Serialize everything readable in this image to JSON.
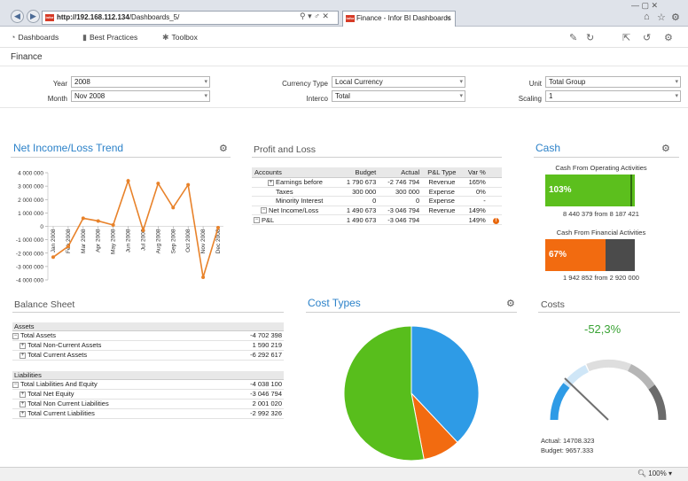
{
  "browser": {
    "url_host": "http://192.168.112.134",
    "url_path": "/Dashboards_5/",
    "tab_title": "Finance - Infor BI Dashboards",
    "favicon_text": "infor",
    "addr_controls": "⚲ ▾ ♂ ✕",
    "window_controls": "—  ▢  ✕",
    "toolbar_icons": [
      "home-icon",
      "star-icon",
      "gear-icon"
    ]
  },
  "menu": {
    "dashboards": "Dashboards",
    "best_practices": "Best Practices",
    "toolbox": "Toolbox",
    "right_icons": [
      "pen-icon",
      "refresh-icon",
      "share-icon",
      "undo-icon",
      "settings-icon"
    ]
  },
  "page_title": "Finance",
  "filters": {
    "year_label": "Year",
    "year_value": "2008",
    "month_label": "Month",
    "month_value": "Nov 2008",
    "currency_label": "Currency Type",
    "currency_value": "Local Currency",
    "interco_label": "Interco",
    "interco_value": "Total",
    "unit_label": "Unit",
    "unit_value": "Total Group",
    "scaling_label": "Scaling",
    "scaling_value": "1"
  },
  "net_income": {
    "title": "Net Income/Loss Trend",
    "chart_data": {
      "type": "line",
      "categories": [
        "Jan 2008",
        "Feb 2008",
        "Mar 2008",
        "Apr 2008",
        "May 2008",
        "Jun 2008",
        "Jul 2008",
        "Aug 2008",
        "Sep 2008",
        "Oct 2008",
        "Nov 2008",
        "Dec 2008"
      ],
      "values": [
        -2300000,
        -1500000,
        600000,
        400000,
        100000,
        3400000,
        -300000,
        3200000,
        1400000,
        3100000,
        -3800000,
        -100000
      ],
      "yticks": [
        "4 000 000",
        "3 000 000",
        "2 000 000",
        "1 000 000",
        "0",
        "-1 000 000",
        "-2 000 000",
        "-3 000 000",
        "-4 000 000"
      ],
      "ylim": [
        -4000000,
        4000000
      ],
      "color": "#e8822a"
    }
  },
  "pl": {
    "title": "Profit and Loss",
    "headers": [
      "Accounts",
      "Budget",
      "Actual",
      "P&L Type",
      "Var %"
    ],
    "rows": [
      {
        "name": "Earnings before",
        "budget": "1 790 673",
        "actual": "-2 746 794",
        "type": "Revenue",
        "var": "165%"
      },
      {
        "name": "Taxes",
        "budget": "300 000",
        "actual": "300 000",
        "type": "Expense",
        "var": "0%"
      },
      {
        "name": "Minority Interest",
        "budget": "0",
        "actual": "0",
        "type": "Expense",
        "var": "-"
      },
      {
        "name": "Net Income/Loss",
        "budget": "1 490 673",
        "actual": "-3 046 794",
        "type": "Revenue",
        "var": "149%"
      },
      {
        "name": "P&L",
        "budget": "1 490 673",
        "actual": "-3 046 794",
        "type": "",
        "var": "149%"
      }
    ],
    "flag": "!"
  },
  "cash": {
    "title": "Cash",
    "op_label": "Cash From Operating Activities",
    "op_pct": "103%",
    "op_fraction": 1.03,
    "op_summary": "8 440 379 from 8 187 421",
    "op_color": "#5cbf1d",
    "fin_label": "Cash From Financial Activities",
    "fin_pct": "67%",
    "fin_fraction": 0.67,
    "fin_summary": "1 942 852 from 2 920 000",
    "fin_color": "#f26b10"
  },
  "balance": {
    "title": "Balance Sheet",
    "assets_header": "Assets",
    "assets": [
      {
        "name": "Total Assets",
        "value": "-4 702 398",
        "level": 0,
        "exp": "−"
      },
      {
        "name": "Total Non-Current Assets",
        "value": "1 590 219",
        "level": 1,
        "exp": "+"
      },
      {
        "name": "Total Current Assets",
        "value": "-6 292 617",
        "level": 1,
        "exp": "+"
      }
    ],
    "liab_header": "Liabilities",
    "liabilities": [
      {
        "name": "Total Liabilities And Equity",
        "value": "-4 038 100",
        "level": 0,
        "exp": "−"
      },
      {
        "name": "Total Net Equity",
        "value": "-3 046 794",
        "level": 1,
        "exp": "+"
      },
      {
        "name": "Total Non Current Liabilities",
        "value": "2 001 020",
        "level": 1,
        "exp": "+"
      },
      {
        "name": "Total Current Liabilities",
        "value": "-2 992 326",
        "level": 1,
        "exp": "+"
      }
    ]
  },
  "cost_types": {
    "title": "Cost Types",
    "chart_data": {
      "type": "pie",
      "slices": [
        {
          "value": 38,
          "color": "#2e9be6"
        },
        {
          "value": 9,
          "color": "#f26b10"
        },
        {
          "value": 53,
          "color": "#58be1c"
        }
      ]
    }
  },
  "costs": {
    "title": "Costs",
    "value_text": "-52,3%",
    "actual_text": "Actual:  14708.323",
    "budget_text": "Budget: 9657.333"
  },
  "status": {
    "zoom": "100%"
  }
}
